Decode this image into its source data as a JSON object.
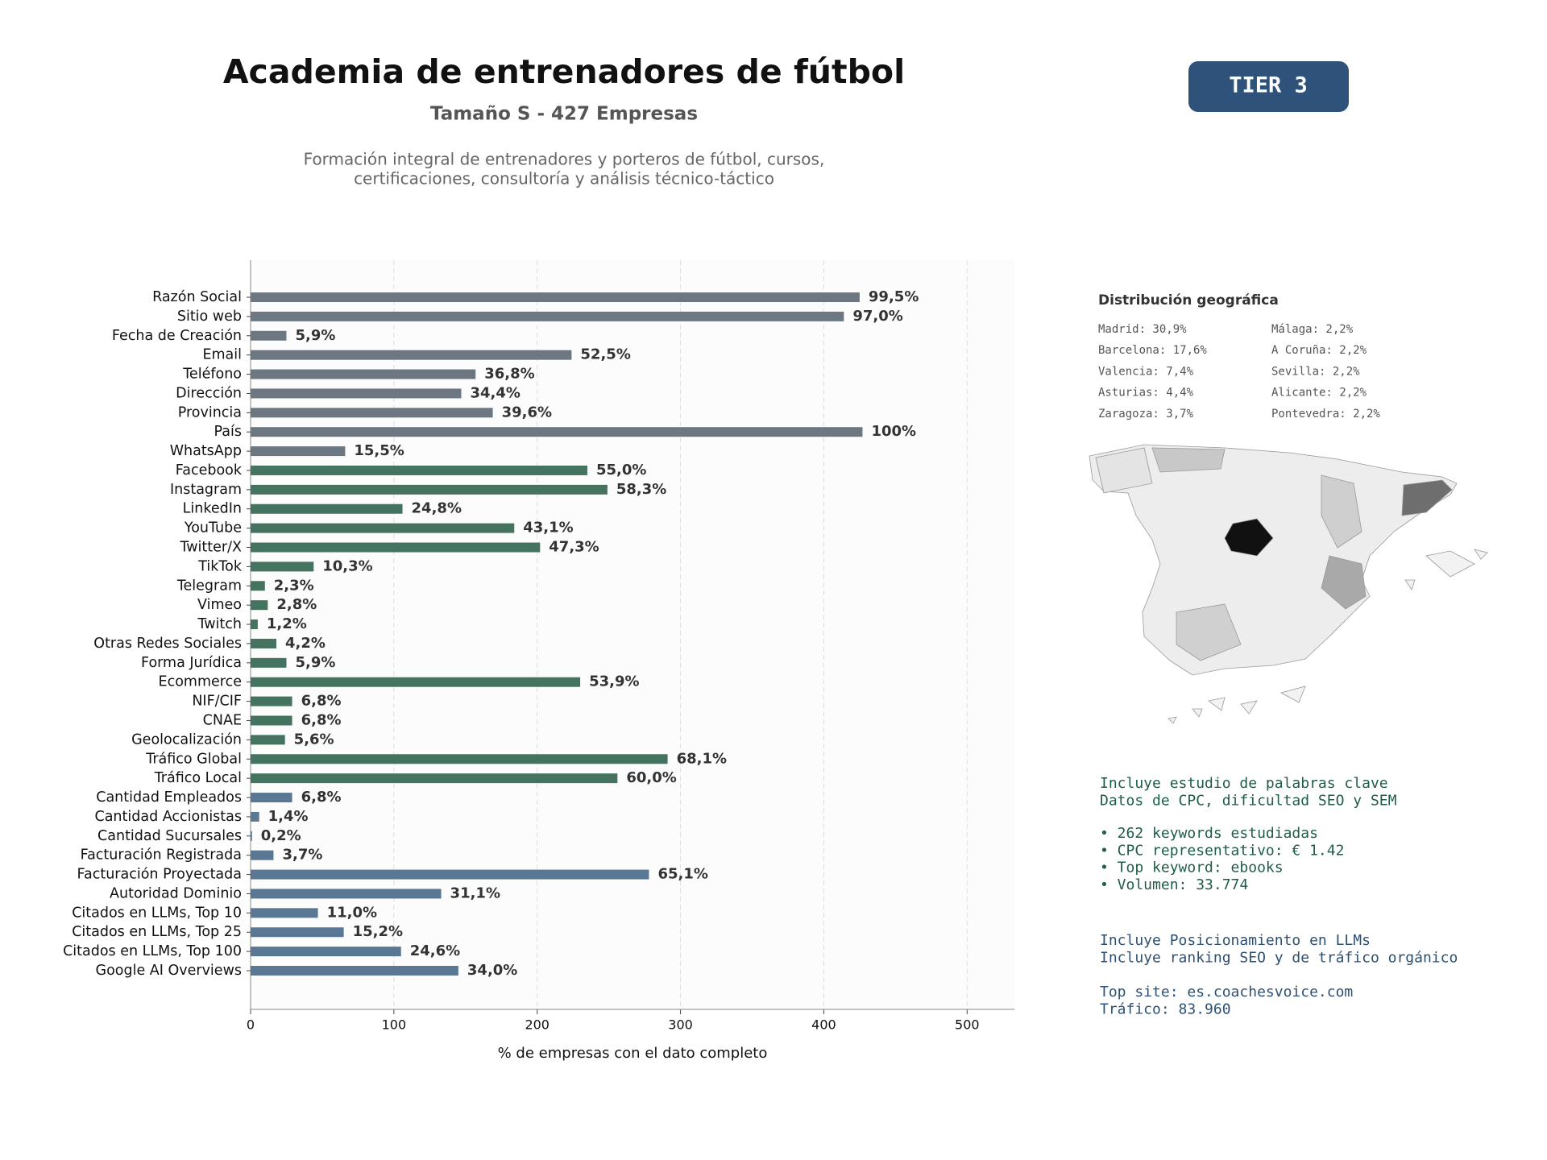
{
  "chart_data": {
    "type": "bar",
    "orientation": "horizontal",
    "title": "Academia de entrenadores de fútbol",
    "subtitle": "Tamaño S - 427 Empresas",
    "description": [
      "Formación integral de entrenadores y porteros de fútbol, cursos,",
      "certificaciones, consultoría y análisis técnico-táctico"
    ],
    "xlabel": "% de empresas con el dato completo",
    "categories": [
      "Razón Social",
      "Sitio web",
      "Fecha de Creación",
      "Email",
      "Teléfono",
      "Dirección",
      "Provincia",
      "País",
      "WhatsApp",
      "Facebook",
      "Instagram",
      "LinkedIn",
      "YouTube",
      "Twitter/X",
      "TikTok",
      "Telegram",
      "Vimeo",
      "Twitch",
      "Otras Redes Sociales",
      "Forma Jurídica",
      "Ecommerce",
      "NIF/CIF",
      "CNAE",
      "Geolocalización",
      "Tráfico Global",
      "Tráfico Local",
      "Cantidad Empleados",
      "Cantidad Accionistas",
      "Cantidad Sucursales",
      "Facturación Registrada",
      "Facturación Proyectada",
      "Autoridad Dominio",
      "Citados en LLMs, Top 10",
      "Citados en LLMs, Top 25",
      "Citados en LLMs, Top 100",
      "Google AI Overviews"
    ],
    "values": [
      425,
      414,
      25,
      224,
      157,
      147,
      169,
      427,
      66,
      235,
      249,
      106,
      184,
      202,
      44,
      10,
      12,
      5,
      18,
      25,
      230,
      29,
      29,
      24,
      291,
      256,
      29,
      6,
      1,
      16,
      278,
      133,
      47,
      65,
      105,
      145
    ],
    "value_labels": [
      "99,5%",
      "97,0%",
      "5,9%",
      "52,5%",
      "36,8%",
      "34,4%",
      "39,6%",
      "100%",
      "15,5%",
      "55,0%",
      "58,3%",
      "24,8%",
      "43,1%",
      "47,3%",
      "10,3%",
      "2,3%",
      "2,8%",
      "1,2%",
      "4,2%",
      "5,9%",
      "53,9%",
      "6,8%",
      "6,8%",
      "5,6%",
      "68,1%",
      "60,0%",
      "6,8%",
      "1,4%",
      "0,2%",
      "3,7%",
      "65,1%",
      "31,1%",
      "11,0%",
      "15,2%",
      "24,6%",
      "34,0%"
    ],
    "colors": [
      "#6c7781",
      "#6c7781",
      "#6c7781",
      "#6c7781",
      "#6c7781",
      "#6c7781",
      "#6c7781",
      "#6c7781",
      "#6c7781",
      "#44735f",
      "#44735f",
      "#44735f",
      "#44735f",
      "#44735f",
      "#44735f",
      "#44735f",
      "#44735f",
      "#44735f",
      "#44735f",
      "#44735f",
      "#44735f",
      "#44735f",
      "#44735f",
      "#44735f",
      "#44735f",
      "#44735f",
      "#5a7894",
      "#5a7894",
      "#5a7894",
      "#5a7894",
      "#5a7894",
      "#5a7894",
      "#5a7894",
      "#5a7894",
      "#5a7894",
      "#5a7894"
    ],
    "xlim": [
      0,
      533
    ],
    "xticks": [
      0,
      100,
      200,
      300,
      400,
      500
    ],
    "grid": true
  },
  "panel": {
    "badge": "TIER 3",
    "geo": {
      "title": "Distribución geográfica",
      "items": [
        [
          "Madrid: 30,9%",
          "Málaga: 2,2%"
        ],
        [
          "Barcelona: 17,6%",
          "A Coruña: 2,2%"
        ],
        [
          "Valencia: 7,4%",
          "Sevilla: 2,2%"
        ],
        [
          "Asturias: 4,4%",
          "Alicante: 2,2%"
        ],
        [
          "Zaragoza: 3,7%",
          "Pontevedra: 2,2%"
        ]
      ]
    },
    "keywords": {
      "intro": [
        "Incluye estudio de palabras clave",
        "Datos de CPC, dificultad SEO y SEM"
      ],
      "bullets": [
        "• 262 keywords estudiadas",
        "• CPC representativo: € 1.42",
        "• Top keyword: ebooks",
        "• Volumen: 33.774"
      ]
    },
    "llm": {
      "intro": [
        "Incluye Posicionamiento en LLMs",
        "Incluye ranking SEO y de tráfico orgánico"
      ],
      "top": [
        "Top site: es.coachesvoice.com",
        "Tráfico: 83.960"
      ]
    }
  }
}
